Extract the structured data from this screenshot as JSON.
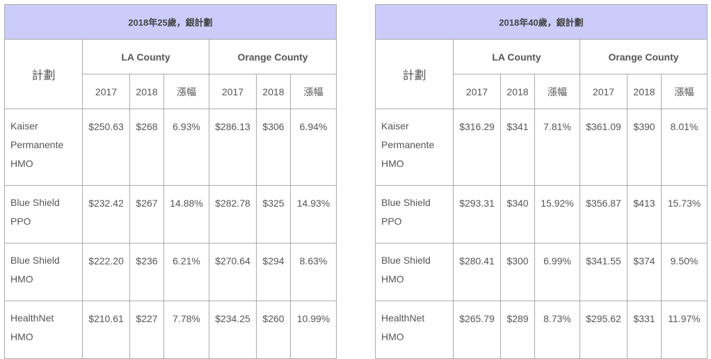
{
  "tables": [
    {
      "caption": "2018年25歲，銀計劃",
      "plan_header": "計劃",
      "regions": [
        "LA County",
        "Orange County"
      ],
      "sub_headers": [
        "2017",
        "2018",
        "漲幅",
        "2017",
        "2018",
        "漲幅"
      ],
      "rows": [
        {
          "plan_lines": [
            "Kaiser",
            "Permanente",
            "HMO"
          ],
          "values": [
            "$250.63",
            "$268",
            "6.93%",
            "$286.13",
            "$306",
            "6.94%"
          ]
        },
        {
          "plan_lines": [
            "Blue Shield",
            "PPO"
          ],
          "values": [
            "$232.42",
            "$267",
            "14.88%",
            "$282.78",
            "$325",
            "14.93%"
          ]
        },
        {
          "plan_lines": [
            "Blue Shield",
            "HMO"
          ],
          "values": [
            "$222.20",
            "$236",
            "6.21%",
            "$270.64",
            "$294",
            "8.63%"
          ]
        },
        {
          "plan_lines": [
            "HealthNet",
            "HMO"
          ],
          "values": [
            "$210.61",
            "$227",
            "7.78%",
            "$234.25",
            "$260",
            "10.99%"
          ]
        }
      ]
    },
    {
      "caption": "2018年40歲，銀計劃",
      "plan_header": "計劃",
      "regions": [
        "LA County",
        "Orange County"
      ],
      "sub_headers": [
        "2017",
        "2018",
        "漲幅",
        "2017",
        "2018",
        "漲幅"
      ],
      "rows": [
        {
          "plan_lines": [
            "Kaiser",
            "Permanente",
            "HMO"
          ],
          "values": [
            "$316.29",
            "$341",
            "7.81%",
            "$361.09",
            "$390",
            "8.01%"
          ]
        },
        {
          "plan_lines": [
            "Blue Shield",
            "PPO"
          ],
          "values": [
            "$293.31",
            "$340",
            "15.92%",
            "$356.87",
            "$413",
            "15.73%"
          ]
        },
        {
          "plan_lines": [
            "Blue Shield",
            "HMO"
          ],
          "values": [
            "$280.41",
            "$300",
            "6.99%",
            "$341.55",
            "$374",
            "9.50%"
          ]
        },
        {
          "plan_lines": [
            "HealthNet",
            "HMO"
          ],
          "values": [
            "$265.79",
            "$289",
            "8.73%",
            "$295.62",
            "$331",
            "11.97%"
          ]
        }
      ]
    }
  ]
}
